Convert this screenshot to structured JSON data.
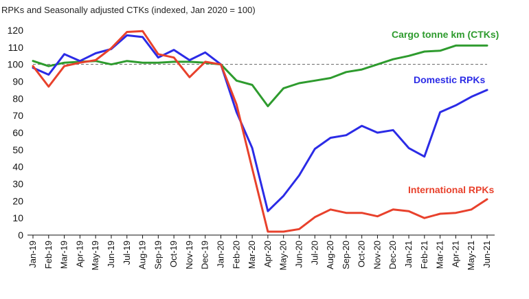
{
  "chart_data": {
    "type": "line",
    "title": "RPKs and Seasonally adjusted CTKs (indexed, Jan 2020 = 100)",
    "xlabel": "",
    "ylabel": "",
    "ylim": [
      0,
      120
    ],
    "yticks": [
      0,
      10,
      20,
      30,
      40,
      50,
      60,
      70,
      80,
      90,
      100,
      110,
      120
    ],
    "reference_line": 100,
    "grid": false,
    "x": [
      "Jan-19",
      "Feb-19",
      "Mar-19",
      "Apr-19",
      "May-19",
      "Jun-19",
      "Jul-19",
      "Aug-19",
      "Sep-19",
      "Oct-19",
      "Nov-19",
      "Dec-19",
      "Jan-20",
      "Feb-20",
      "Mar-20",
      "Apr-20",
      "May-20",
      "Jun-20",
      "Jul-20",
      "Aug-20",
      "Sep-20",
      "Oct-20",
      "Nov-20",
      "Dec-20",
      "Jan-21",
      "Feb-21",
      "Mar-21",
      "Apr-21",
      "May-21",
      "Jun-21"
    ],
    "series": [
      {
        "name": "Cargo tonne km (CTKs)",
        "color": "#2e9b2e",
        "values": [
          102,
          99,
          101,
          101.5,
          102,
          100,
          102,
          101,
          101,
          101.5,
          101.5,
          101,
          100,
          90.5,
          88,
          75.5,
          86,
          89,
          90.5,
          92,
          95.5,
          97,
          100,
          103,
          105,
          107.5,
          108,
          111,
          111,
          111
        ]
      },
      {
        "name": "Domestic RPKs",
        "color": "#2b2be6",
        "values": [
          98,
          94,
          106,
          102,
          106.5,
          109,
          117,
          116,
          104,
          108.5,
          102.5,
          107,
          100,
          72,
          51,
          14,
          23,
          35,
          50.5,
          57,
          58.5,
          64,
          60,
          61.5,
          51,
          46,
          72,
          76,
          81,
          85
        ]
      },
      {
        "name": "International RPKs",
        "color": "#e8412c",
        "values": [
          99,
          87,
          99,
          101,
          102.5,
          109.5,
          119,
          119.5,
          106,
          104,
          92.5,
          101.5,
          100,
          76.5,
          39,
          2,
          2,
          3.5,
          10.5,
          15,
          13,
          13,
          11,
          15,
          14,
          10,
          12.5,
          13,
          15,
          21
        ]
      }
    ],
    "reference_color": "#666666"
  }
}
